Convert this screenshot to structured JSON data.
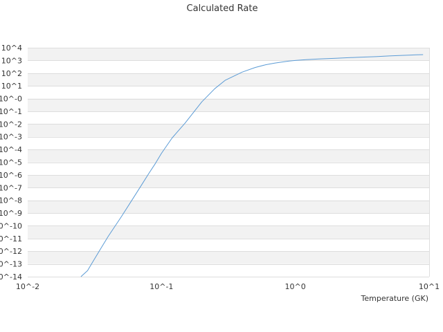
{
  "chart_data": {
    "type": "line",
    "title": "Calculated Rate",
    "xlabel": "Temperature (GK)",
    "ylabel": "",
    "x_scale": "log",
    "y_scale": "log",
    "xlim": [
      0.01,
      10
    ],
    "ylim": [
      1e-14,
      10000
    ],
    "x_ticks": [
      0.01,
      0.1,
      1,
      10
    ],
    "x_tick_labels": [
      "10^-2",
      "10^-1",
      "10^0",
      "10^1"
    ],
    "y_ticks": [
      1e-14,
      1e-13,
      1e-12,
      1e-11,
      1e-10,
      1e-09,
      1e-08,
      1e-07,
      1e-06,
      1e-05,
      0.0001,
      0.001,
      0.01,
      0.1,
      1,
      10,
      100,
      1000,
      10000
    ],
    "y_tick_labels": [
      "10^-14",
      "10^-13",
      "10^-12",
      "10^-11",
      "10^-10",
      "10^-9",
      "10^-8",
      "10^-7",
      "10^-6",
      "10^-5",
      "10^-4",
      "10^-3",
      "10^-2",
      "10^-1",
      "10^-0",
      "10^1",
      "10^2",
      "10^3",
      "10^4"
    ],
    "grid": "horizontal alternating bands",
    "legend": "none",
    "colors": {
      "line": "#5b9bd5",
      "band": "#f2f2f2",
      "gridline": "#dddddd",
      "text": "#333333"
    },
    "series": [
      {
        "x": [
          0.025,
          0.028,
          0.03,
          0.035,
          0.04,
          0.05,
          0.06,
          0.07,
          0.08,
          0.09,
          0.1,
          0.12,
          0.15,
          0.2,
          0.25,
          0.3,
          0.4,
          0.5,
          0.6,
          0.7,
          0.8,
          0.9,
          1.0,
          1.2,
          1.5,
          2.0,
          2.5,
          3.0,
          4.0,
          5.0,
          6.0,
          7.0,
          8.0,
          9.0
        ],
        "y": [
          1e-14,
          3e-14,
          1e-13,
          1.5e-12,
          1.5e-11,
          5e-10,
          1e-08,
          1.3e-07,
          1.2e-06,
          8e-06,
          5e-05,
          0.0008,
          0.012,
          0.55,
          6,
          28,
          120,
          280,
          460,
          610,
          760,
          900,
          1000,
          1150,
          1300,
          1500,
          1650,
          1800,
          2000,
          2250,
          2450,
          2600,
          2750,
          2850
        ]
      }
    ]
  }
}
